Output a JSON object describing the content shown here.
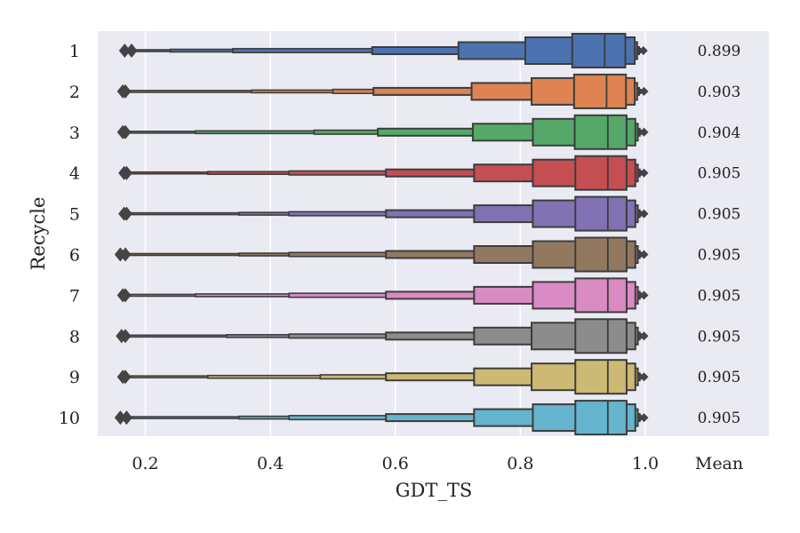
{
  "chart_data": {
    "type": "boxen",
    "orientation": "horizontal",
    "xlabel": "GDT_TS",
    "ylabel": "Recycle",
    "xlim": [
      0.12,
      1.2
    ],
    "xticks": [
      "0.2",
      "0.4",
      "0.6",
      "0.8",
      "1.0"
    ],
    "extra_xtick_label": "Mean",
    "grid": true,
    "categories": [
      "1",
      "2",
      "3",
      "4",
      "5",
      "6",
      "7",
      "8",
      "9",
      "10"
    ],
    "colors": [
      "#4c72b0",
      "#dd8452",
      "#55a868",
      "#c44e52",
      "#8172b3",
      "#937860",
      "#da8bc3",
      "#8c8c8c",
      "#ccb974",
      "#64b5cd"
    ],
    "outlier_color": "#444444",
    "box_edge_color": "#3d3d3d",
    "series": [
      {
        "category": "1",
        "mean_label": "0.899",
        "median": 0.935,
        "outliers": [
          0.167,
          0.178
        ],
        "levels": [
          [
            0.883,
            0.968
          ],
          [
            0.808,
            0.983
          ],
          [
            0.701,
            0.987
          ],
          [
            0.563,
            0.99
          ],
          [
            0.34,
            0.992
          ],
          [
            0.24,
            0.993
          ],
          [
            0.18,
            0.994
          ]
        ]
      },
      {
        "category": "2",
        "mean_label": "0.903",
        "median": 0.938,
        "outliers": [
          0.164,
          0.168
        ],
        "levels": [
          [
            0.886,
            0.969
          ],
          [
            0.818,
            0.983
          ],
          [
            0.722,
            0.987
          ],
          [
            0.565,
            0.99
          ],
          [
            0.5,
            0.992
          ],
          [
            0.37,
            0.993
          ],
          [
            0.17,
            0.995
          ]
        ]
      },
      {
        "category": "3",
        "mean_label": "0.904",
        "median": 0.94,
        "outliers": [
          0.164,
          0.168
        ],
        "levels": [
          [
            0.887,
            0.97
          ],
          [
            0.82,
            0.984
          ],
          [
            0.724,
            0.988
          ],
          [
            0.572,
            0.991
          ],
          [
            0.47,
            0.993
          ],
          [
            0.28,
            0.994
          ],
          [
            0.17,
            0.995
          ]
        ]
      },
      {
        "category": "4",
        "mean_label": "0.905",
        "median": 0.94,
        "outliers": [
          0.166,
          0.17
        ],
        "levels": [
          [
            0.888,
            0.97
          ],
          [
            0.82,
            0.984
          ],
          [
            0.726,
            0.988
          ],
          [
            0.585,
            0.991
          ],
          [
            0.43,
            0.993
          ],
          [
            0.3,
            0.994
          ],
          [
            0.172,
            0.995
          ]
        ]
      },
      {
        "category": "5",
        "mean_label": "0.905",
        "median": 0.94,
        "outliers": [
          0.166,
          0.17
        ],
        "levels": [
          [
            0.888,
            0.97
          ],
          [
            0.82,
            0.984
          ],
          [
            0.726,
            0.988
          ],
          [
            0.585,
            0.991
          ],
          [
            0.43,
            0.993
          ],
          [
            0.35,
            0.994
          ],
          [
            0.172,
            0.995
          ]
        ]
      },
      {
        "category": "6",
        "mean_label": "0.905",
        "median": 0.94,
        "outliers": [
          0.16,
          0.168
        ],
        "levels": [
          [
            0.888,
            0.97
          ],
          [
            0.82,
            0.984
          ],
          [
            0.726,
            0.988
          ],
          [
            0.585,
            0.991
          ],
          [
            0.43,
            0.993
          ],
          [
            0.35,
            0.994
          ],
          [
            0.17,
            0.995
          ]
        ]
      },
      {
        "category": "7",
        "mean_label": "0.905",
        "median": 0.94,
        "outliers": [
          0.164,
          0.168
        ],
        "levels": [
          [
            0.888,
            0.97
          ],
          [
            0.82,
            0.984
          ],
          [
            0.726,
            0.988
          ],
          [
            0.585,
            0.991
          ],
          [
            0.43,
            0.993
          ],
          [
            0.28,
            0.994
          ],
          [
            0.17,
            0.995
          ]
        ]
      },
      {
        "category": "8",
        "mean_label": "0.905",
        "median": 0.94,
        "outliers": [
          0.162,
          0.168
        ],
        "levels": [
          [
            0.888,
            0.97
          ],
          [
            0.818,
            0.984
          ],
          [
            0.726,
            0.988
          ],
          [
            0.585,
            0.991
          ],
          [
            0.43,
            0.993
          ],
          [
            0.33,
            0.994
          ],
          [
            0.17,
            0.995
          ]
        ]
      },
      {
        "category": "9",
        "mean_label": "0.905",
        "median": 0.94,
        "outliers": [
          0.164,
          0.168
        ],
        "levels": [
          [
            0.888,
            0.97
          ],
          [
            0.818,
            0.984
          ],
          [
            0.726,
            0.988
          ],
          [
            0.585,
            0.991
          ],
          [
            0.48,
            0.993
          ],
          [
            0.3,
            0.994
          ],
          [
            0.17,
            0.995
          ]
        ]
      },
      {
        "category": "10",
        "mean_label": "0.905",
        "median": 0.94,
        "outliers": [
          0.16,
          0.17
        ],
        "levels": [
          [
            0.888,
            0.97
          ],
          [
            0.82,
            0.984
          ],
          [
            0.726,
            0.988
          ],
          [
            0.585,
            0.991
          ],
          [
            0.43,
            0.993
          ],
          [
            0.35,
            0.994
          ],
          [
            0.17,
            0.995
          ]
        ]
      }
    ]
  }
}
